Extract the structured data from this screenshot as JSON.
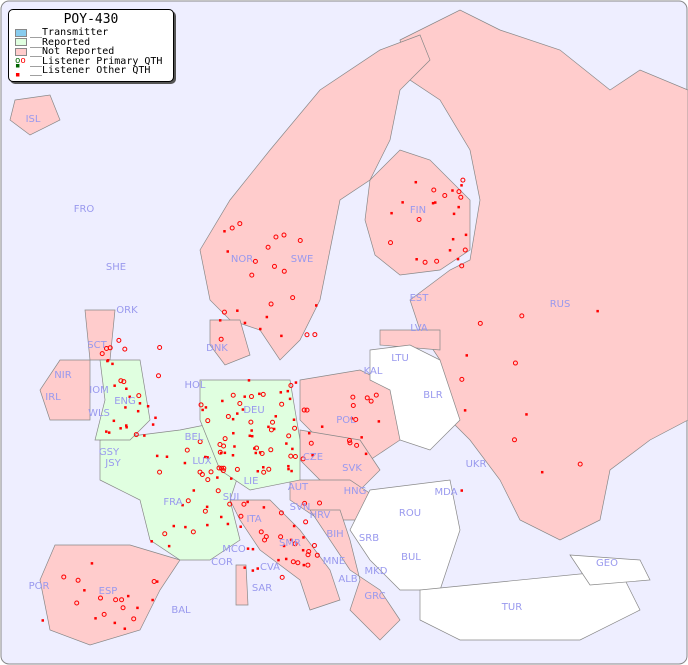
{
  "title": "POY-430",
  "legend": [
    {
      "label": "__Transmitter",
      "color": "#88ccee"
    },
    {
      "label": "__Reported",
      "color": "#e0ffe0"
    },
    {
      "label": "__Not Reported",
      "color": "#ffcccc"
    },
    {
      "label": "__Listener Primary QTH",
      "marker": "open-circle"
    },
    {
      "label": "__Listener Other QTH",
      "marker": "filled-square"
    }
  ],
  "colors": {
    "sea": "#eeeeff",
    "not_reported": "#ffcccc",
    "reported": "#e0ffe0",
    "no_data": "#ffffff",
    "marker": "#ff0000",
    "label": "#9999ee"
  },
  "country_labels": [
    "ISL",
    "FRO",
    "SHE",
    "ORK",
    "NOR",
    "SWE",
    "FIN",
    "EST",
    "LVA",
    "LTU",
    "RUS",
    "DNK",
    "KAL",
    "BLR",
    "HOL",
    "DEU",
    "POL",
    "IRL",
    "NIR",
    "SCT",
    "IOM",
    "WLS",
    "ENG",
    "GSY",
    "JSY",
    "LUX",
    "BEL",
    "CZE",
    "SVK",
    "UKR",
    "FRA",
    "SUI",
    "LIE",
    "AUT",
    "HNG",
    "MDA",
    "ROU",
    "SVN",
    "HRV",
    "ITA",
    "BIH",
    "SRB",
    "BUL",
    "MCO",
    "COR",
    "SMR",
    "MNE",
    "CVA",
    "MKD",
    "ALB",
    "GEO",
    "SAR",
    "POR",
    "ESP",
    "BAL",
    "GRC",
    "TUR"
  ],
  "reported_countries": [
    "FRA",
    "DEU",
    "BEL",
    "HOL",
    "LUX",
    "SUI",
    "LIE",
    "ENG",
    "WLS",
    "GSY",
    "JSY"
  ],
  "no_data_countries": [
    "LTU",
    "BLR",
    "MDA",
    "ROU",
    "BUL",
    "TUR",
    "GEO",
    "KAL",
    "MKD",
    "SRB",
    "BIH",
    "MNE"
  ]
}
